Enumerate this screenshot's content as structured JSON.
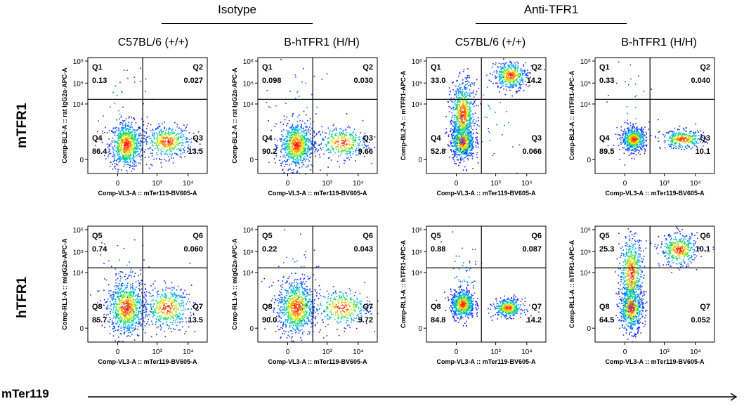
{
  "header": {
    "groups": [
      "Isotype",
      "Anti-TFR1"
    ],
    "columns": [
      "C57BL/6 (+/+)",
      "B-hTFR1 (H/H)",
      "C57BL/6 (+/+)",
      "B-hTFR1 (H/H)"
    ]
  },
  "rows": [
    "mTFR1",
    "hTFR1"
  ],
  "bottom_axis_label": "mTer119",
  "colors": {
    "cold": "#1a1aff",
    "mid": "#00e060",
    "warm": "#ffee00",
    "hot": "#ff2000"
  },
  "chart_data": [
    {
      "type": "scatter",
      "row": "mTFR1",
      "column": "C57BL/6 (+/+)",
      "group": "Isotype",
      "xlabel": "Comp-VL3-A :: mTer119-BV605-A",
      "ylabel": "Comp-BL2-A :: rat IgG2a-APC-A",
      "xticks": [
        "0",
        "10³",
        "10⁴"
      ],
      "yticks": [
        "0",
        "10⁴",
        "10⁵",
        "10⁶"
      ],
      "quadrants": [
        {
          "name": "Q1",
          "value": "0.13"
        },
        {
          "name": "Q2",
          "value": "0.027"
        },
        {
          "name": "Q3",
          "value": "13.5"
        },
        {
          "name": "Q4",
          "value": "86.4"
        }
      ],
      "populations": [
        {
          "cx": 0.32,
          "cy": 0.25,
          "sx": 0.07,
          "sy": 0.1,
          "n": 750
        },
        {
          "cx": 0.66,
          "cy": 0.28,
          "sx": 0.1,
          "sy": 0.07,
          "n": 420
        },
        {
          "cx": 0.3,
          "cy": 0.55,
          "sx": 0.12,
          "sy": 0.25,
          "n": 40
        }
      ]
    },
    {
      "type": "scatter",
      "row": "mTFR1",
      "column": "B-hTFR1 (H/H)",
      "group": "Isotype",
      "xlabel": "Comp-VL3-A :: mTer119-BV605-A",
      "ylabel": "Comp-BL2-A :: rat IgG2a-APC-A",
      "xticks": [
        "0",
        "10³",
        "10⁴"
      ],
      "yticks": [
        "0",
        "10⁴",
        "10⁵",
        "10⁶"
      ],
      "quadrants": [
        {
          "name": "Q1",
          "value": "0.098"
        },
        {
          "name": "Q2",
          "value": "0.030"
        },
        {
          "name": "Q3",
          "value": "9.66"
        },
        {
          "name": "Q4",
          "value": "90.2"
        }
      ],
      "populations": [
        {
          "cx": 0.32,
          "cy": 0.25,
          "sx": 0.07,
          "sy": 0.1,
          "n": 750
        },
        {
          "cx": 0.7,
          "cy": 0.27,
          "sx": 0.11,
          "sy": 0.07,
          "n": 330
        },
        {
          "cx": 0.35,
          "cy": 0.55,
          "sx": 0.15,
          "sy": 0.25,
          "n": 40
        }
      ]
    },
    {
      "type": "scatter",
      "row": "mTFR1",
      "column": "C57BL/6 (+/+)",
      "group": "Anti-TFR1",
      "xlabel": "Comp-VL3-A :: mTer119-BV605-A",
      "ylabel": "Comp-BL2-A :: mTFR1-APC-A",
      "xticks": [
        "0",
        "10³",
        "10⁴"
      ],
      "yticks": [
        "0",
        "10⁴",
        "10⁵",
        "10⁶"
      ],
      "quadrants": [
        {
          "name": "Q1",
          "value": "33.0"
        },
        {
          "name": "Q2",
          "value": "14.2"
        },
        {
          "name": "Q3",
          "value": "0.066"
        },
        {
          "name": "Q4",
          "value": "52.8"
        }
      ],
      "populations": [
        {
          "cx": 0.3,
          "cy": 0.28,
          "sx": 0.05,
          "sy": 0.08,
          "n": 650
        },
        {
          "cx": 0.3,
          "cy": 0.52,
          "sx": 0.05,
          "sy": 0.14,
          "n": 650
        },
        {
          "cx": 0.7,
          "cy": 0.85,
          "sx": 0.07,
          "sy": 0.06,
          "n": 420
        },
        {
          "cx": 0.5,
          "cy": 0.5,
          "sx": 0.2,
          "sy": 0.3,
          "n": 50
        }
      ]
    },
    {
      "type": "scatter",
      "row": "mTFR1",
      "column": "B-hTFR1 (H/H)",
      "group": "Anti-TFR1",
      "xlabel": "Comp-VL3-A :: mTer119-BV605-A",
      "ylabel": "Comp-BL2-A :: mTFR1-APC-A",
      "xticks": [
        "0",
        "10³",
        "10⁴"
      ],
      "yticks": [
        "0",
        "10⁴",
        "10⁵",
        "10⁶"
      ],
      "quadrants": [
        {
          "name": "Q1",
          "value": "0.33"
        },
        {
          "name": "Q2",
          "value": "0.040"
        },
        {
          "name": "Q3",
          "value": "10.1"
        },
        {
          "name": "Q4",
          "value": "89.5"
        }
      ],
      "populations": [
        {
          "cx": 0.32,
          "cy": 0.3,
          "sx": 0.05,
          "sy": 0.05,
          "n": 600
        },
        {
          "cx": 0.73,
          "cy": 0.3,
          "sx": 0.09,
          "sy": 0.04,
          "n": 330
        },
        {
          "cx": 0.3,
          "cy": 0.55,
          "sx": 0.1,
          "sy": 0.25,
          "n": 40
        }
      ]
    },
    {
      "type": "scatter",
      "row": "hTFR1",
      "column": "C57BL/6 (+/+)",
      "group": "Isotype",
      "xlabel": "Comp-VL3-A :: mTer119-BV605-A",
      "ylabel": "Comp-RL1-A :: mIgG2a-APC-A",
      "xticks": [
        "0",
        "10³",
        "10⁴"
      ],
      "yticks": [
        "0",
        "10⁴",
        "10⁵",
        "10⁶"
      ],
      "quadrants": [
        {
          "name": "Q5",
          "value": "0.74"
        },
        {
          "name": "Q6",
          "value": "0.060"
        },
        {
          "name": "Q7",
          "value": "13.5"
        },
        {
          "name": "Q8",
          "value": "85.7"
        }
      ],
      "populations": [
        {
          "cx": 0.32,
          "cy": 0.3,
          "sx": 0.08,
          "sy": 0.12,
          "n": 800
        },
        {
          "cx": 0.66,
          "cy": 0.3,
          "sx": 0.1,
          "sy": 0.09,
          "n": 420
        },
        {
          "cx": 0.3,
          "cy": 0.55,
          "sx": 0.12,
          "sy": 0.2,
          "n": 60
        }
      ]
    },
    {
      "type": "scatter",
      "row": "hTFR1",
      "column": "B-hTFR1 (H/H)",
      "group": "Isotype",
      "xlabel": "Comp-VL3-A :: mTer119-BV605-A",
      "ylabel": "Comp-RL1-A :: mIgG2a-APC-A",
      "xticks": [
        "0",
        "10³",
        "10⁴"
      ],
      "yticks": [
        "0",
        "10⁴",
        "10⁵",
        "10⁶"
      ],
      "quadrants": [
        {
          "name": "Q5",
          "value": "0.22"
        },
        {
          "name": "Q6",
          "value": "0.043"
        },
        {
          "name": "Q7",
          "value": "9.72"
        },
        {
          "name": "Q8",
          "value": "90.0"
        }
      ],
      "populations": [
        {
          "cx": 0.32,
          "cy": 0.3,
          "sx": 0.08,
          "sy": 0.12,
          "n": 800
        },
        {
          "cx": 0.7,
          "cy": 0.3,
          "sx": 0.12,
          "sy": 0.08,
          "n": 330
        },
        {
          "cx": 0.3,
          "cy": 0.55,
          "sx": 0.12,
          "sy": 0.2,
          "n": 50
        }
      ]
    },
    {
      "type": "scatter",
      "row": "hTFR1",
      "column": "C57BL/6 (+/+)",
      "group": "Anti-TFR1",
      "xlabel": "Comp-VL3-A :: mTer119-BV605-A",
      "ylabel": "Comp-RL1-A :: hTFR1-APC-A",
      "xticks": [
        "0",
        "10³",
        "10⁴"
      ],
      "yticks": [
        "0",
        "10⁴",
        "10⁵",
        "10⁶"
      ],
      "quadrants": [
        {
          "name": "Q5",
          "value": "0.88"
        },
        {
          "name": "Q6",
          "value": "0.087"
        },
        {
          "name": "Q7",
          "value": "14.2"
        },
        {
          "name": "Q8",
          "value": "84.8"
        }
      ],
      "populations": [
        {
          "cx": 0.3,
          "cy": 0.33,
          "sx": 0.05,
          "sy": 0.06,
          "n": 650
        },
        {
          "cx": 0.68,
          "cy": 0.3,
          "sx": 0.06,
          "sy": 0.04,
          "n": 380
        },
        {
          "cx": 0.3,
          "cy": 0.55,
          "sx": 0.08,
          "sy": 0.2,
          "n": 60
        }
      ]
    },
    {
      "type": "scatter",
      "row": "hTFR1",
      "column": "B-hTFR1 (H/H)",
      "group": "Anti-TFR1",
      "xlabel": "Comp-VL3-A :: mTer119-BV605-A",
      "ylabel": "Comp-RL1-A :: hTFR1-APC-A",
      "xticks": [
        "0",
        "10³",
        "10⁴"
      ],
      "yticks": [
        "0",
        "10⁴",
        "10⁵",
        "10⁶"
      ],
      "quadrants": [
        {
          "name": "Q5",
          "value": "25.3"
        },
        {
          "name": "Q6",
          "value": "10.1"
        },
        {
          "name": "Q7",
          "value": "0.052"
        },
        {
          "name": "Q8",
          "value": "64.5"
        }
      ],
      "populations": [
        {
          "cx": 0.3,
          "cy": 0.3,
          "sx": 0.05,
          "sy": 0.1,
          "n": 600
        },
        {
          "cx": 0.3,
          "cy": 0.6,
          "sx": 0.05,
          "sy": 0.16,
          "n": 550
        },
        {
          "cx": 0.7,
          "cy": 0.8,
          "sx": 0.08,
          "sy": 0.07,
          "n": 380
        }
      ]
    }
  ]
}
